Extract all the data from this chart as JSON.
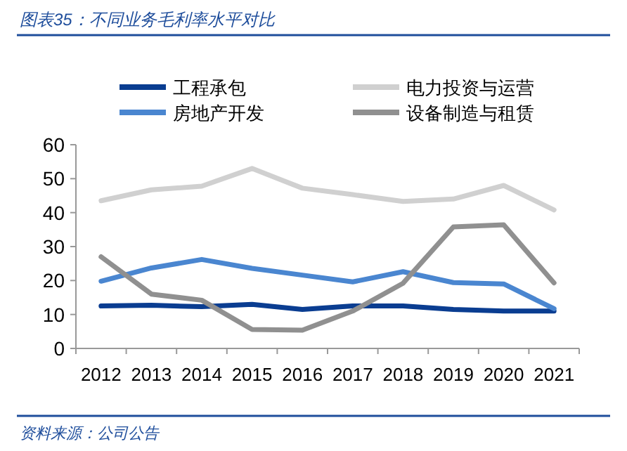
{
  "chart_data": {
    "type": "line",
    "title": "图表35：不同业务毛利率水平对比",
    "categories": [
      "2012",
      "2013",
      "2014",
      "2015",
      "2016",
      "2017",
      "2018",
      "2019",
      "2020",
      "2021"
    ],
    "series": [
      {
        "name": "工程承包",
        "color": "#0a3d91",
        "values": [
          12.5,
          12.7,
          12.3,
          13,
          11.5,
          12.5,
          12.5,
          11.5,
          11,
          11
        ]
      },
      {
        "name": "电力投资与运营",
        "color": "#d0d0d0",
        "values": [
          43.5,
          46.7,
          47.8,
          53,
          47.2,
          45.3,
          43.3,
          44,
          48,
          40.8
        ]
      },
      {
        "name": "房地产开发",
        "color": "#4a86d0",
        "values": [
          19.8,
          23.7,
          26.2,
          23.6,
          21.6,
          19.6,
          22.6,
          19.4,
          19,
          11.7
        ]
      },
      {
        "name": "设备制造与租赁",
        "color": "#909090",
        "values": [
          27,
          16,
          14.2,
          5.6,
          5.4,
          11,
          19.2,
          35.8,
          36.4,
          19.3
        ]
      }
    ],
    "ylim": [
      0,
      60
    ],
    "yticks": [
      0,
      10,
      20,
      30,
      40,
      50,
      60
    ],
    "grid": false,
    "legend": "top",
    "annotations": [
      "资料来源：公司公告"
    ]
  }
}
